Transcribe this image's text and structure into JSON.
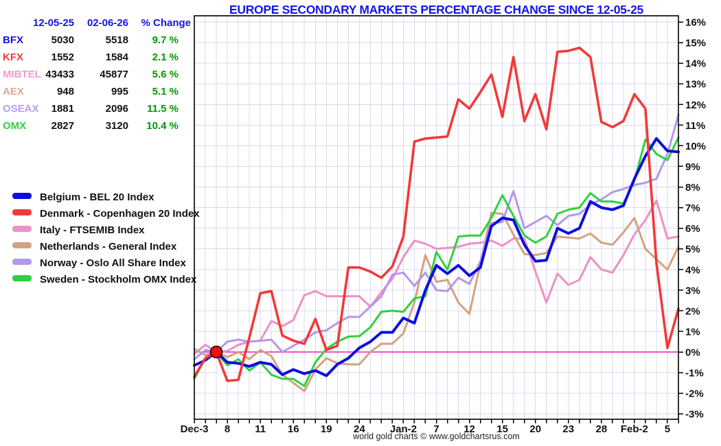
{
  "title": "EUROPE SECONDARY MARKETS PERCENTAGE CHANGE SINCE 12-05-25",
  "title_color": "#1414ee",
  "footer": "world gold charts © www.goldchartsrus.com",
  "table": {
    "header_color": "#1414e8",
    "change_color": "#009900",
    "headers": [
      "12-05-25",
      "02-06-26",
      "% Change"
    ],
    "rows": [
      {
        "label": "BFX",
        "color": "#1414e8",
        "v1": "5030",
        "v2": "5518",
        "change": "9.7 %"
      },
      {
        "label": "KFX",
        "color": "#f23b3b",
        "v1": "1552",
        "v2": "1584",
        "change": "2.1 %"
      },
      {
        "label": "MIBTEL",
        "color": "#f09bce",
        "v1": "43433",
        "v2": "45877",
        "change": "5.6 %"
      },
      {
        "label": "AEX",
        "color": "#d8ab91",
        "v1": "948",
        "v2": "995",
        "change": "5.1 %"
      },
      {
        "label": "OSEAX",
        "color": "#b99cef",
        "v1": "1881",
        "v2": "2096",
        "change": "11.5 %"
      },
      {
        "label": "OMX",
        "color": "#2fd13c",
        "v1": "2827",
        "v2": "3120",
        "change": "10.4 %"
      }
    ]
  },
  "legend": [
    {
      "label": "Belgium - BEL 20 Index",
      "color": "#0d0de0"
    },
    {
      "label": "Denmark - Copenhagen 20 Index",
      "color": "#f23939"
    },
    {
      "label": "Italy - FTSEMIB Index",
      "color": "#ee8fc6"
    },
    {
      "label": "Netherlands - General Index",
      "color": "#d2a284"
    },
    {
      "label": "Norway -  Oslo All Share Index",
      "color": "#b497e9"
    },
    {
      "label": "Sweden -  Stockholm OMX Index",
      "color": "#2fd13c"
    }
  ],
  "chart_data": {
    "type": "line",
    "grid": true,
    "grid_color": "#d8d8ef",
    "zero_line_color": "#ee19c3",
    "ylim": [
      -3,
      16
    ],
    "legend_position": "outside-left",
    "dates": [
      "Dec-3",
      "Dec-4",
      "Dec-5",
      "Dec-8",
      "Dec-9",
      "Dec-10",
      "Dec-11",
      "Dec-12",
      "Dec-15",
      "Dec-16",
      "Dec-17",
      "Dec-18",
      "Dec-19",
      "Dec-22",
      "Dec-23",
      "Dec-24",
      "Dec-29",
      "Dec-30",
      "Dec-31",
      "Jan-2",
      "Jan-5",
      "Jan-6",
      "Jan-7",
      "Jan-8",
      "Jan-9",
      "Jan-12",
      "Jan-13",
      "Jan-14",
      "Jan-15",
      "Jan-16",
      "Jan-19",
      "Jan-20",
      "Jan-21",
      "Jan-22",
      "Jan-23",
      "Jan-26",
      "Jan-27",
      "Jan-28",
      "Jan-29",
      "Jan-30",
      "Feb-2",
      "Feb-3",
      "Feb-4",
      "Feb-5",
      "Feb-6"
    ],
    "x_labels": [
      {
        "label": "Dec-3",
        "day": 0
      },
      {
        "label": "8",
        "day": 3
      },
      {
        "label": "11",
        "day": 6
      },
      {
        "label": "16",
        "day": 9
      },
      {
        "label": "19",
        "day": 12
      },
      {
        "label": "24",
        "day": 15
      },
      {
        "label": "Jan-2",
        "day": 19
      },
      {
        "label": "7",
        "day": 22
      },
      {
        "label": "12",
        "day": 25
      },
      {
        "label": "15",
        "day": 28
      },
      {
        "label": "20",
        "day": 31
      },
      {
        "label": "23",
        "day": 34
      },
      {
        "label": "28",
        "day": 37
      },
      {
        "label": "Feb-2",
        "day": 40
      },
      {
        "label": "5",
        "day": 43
      }
    ],
    "y_ticks": [
      {
        "v": 16,
        "label": "16%"
      },
      {
        "v": 15,
        "label": "15%"
      },
      {
        "v": 14,
        "label": "14%"
      },
      {
        "v": 13,
        "label": "13%"
      },
      {
        "v": 12,
        "label": "12%"
      },
      {
        "v": 11,
        "label": "11%"
      },
      {
        "v": 10,
        "label": "10%"
      },
      {
        "v": 9,
        "label": "9%"
      },
      {
        "v": 8,
        "label": "8%"
      },
      {
        "v": 7,
        "label": "7%"
      },
      {
        "v": 6,
        "label": "6%"
      },
      {
        "v": 5,
        "label": "5%"
      },
      {
        "v": 4,
        "label": "4%"
      },
      {
        "v": 3,
        "label": "3%"
      },
      {
        "v": 2,
        "label": "2%"
      },
      {
        "v": 1,
        "label": "1%"
      },
      {
        "v": 0,
        "label": "0%"
      },
      {
        "v": -1,
        "label": "-1%"
      },
      {
        "v": -2,
        "label": "-2%"
      },
      {
        "v": -3,
        "label": "-3%"
      }
    ],
    "start_marker": {
      "date_index": 2,
      "value": 0,
      "color": "#ee1111"
    },
    "series": [
      {
        "name": "Italy - FTSEMIB Index",
        "color": "#ee8fc6",
        "width": 3,
        "values": [
          -0.1,
          0.35,
          0,
          0.05,
          0.35,
          0.5,
          0.55,
          1.5,
          1.25,
          1.55,
          2.75,
          2.95,
          2.7,
          2.7,
          2.7,
          2.7,
          2.2,
          2.9,
          3.55,
          4.6,
          5.4,
          5.25,
          5.0,
          5.05,
          5.1,
          5.25,
          5.3,
          5.4,
          5.15,
          5.5,
          5.5,
          3.9,
          2.4,
          3.8,
          3.25,
          3.5,
          4.6,
          4.0,
          3.85,
          4.7,
          5.7,
          6.4,
          7.35,
          5.5,
          5.6
        ]
      },
      {
        "name": "Netherlands - General Index",
        "color": "#d2a284",
        "width": 3,
        "values": [
          0.15,
          -0.15,
          0,
          -0.25,
          0.0,
          -0.35,
          0.1,
          -0.2,
          -1.1,
          -1.5,
          -1.9,
          -0.85,
          -0.3,
          -0.55,
          -0.6,
          -0.6,
          0.0,
          0.4,
          0.4,
          0.9,
          2.4,
          4.7,
          3.4,
          3.5,
          2.4,
          1.85,
          4.3,
          6.75,
          6.7,
          5.7,
          4.75,
          4.7,
          4.8,
          5.6,
          5.55,
          5.5,
          5.75,
          5.3,
          5.2,
          5.8,
          6.5,
          5.0,
          4.5,
          4.0,
          5.1
        ]
      },
      {
        "name": "Norway -  Oslo All Share Index",
        "color": "#b497e9",
        "width": 3,
        "values": [
          -0.35,
          0.1,
          0,
          0.5,
          0.6,
          0.5,
          0.55,
          0.6,
          0.0,
          0.3,
          0.6,
          0.95,
          1.05,
          1.4,
          1.7,
          1.7,
          2.2,
          2.7,
          3.75,
          3.85,
          3.2,
          3.85,
          3.0,
          2.95,
          3.6,
          3.3,
          4.4,
          6.25,
          6.3,
          7.8,
          6.0,
          6.3,
          6.6,
          6.15,
          6.6,
          6.7,
          7.15,
          7.4,
          7.75,
          7.9,
          8.1,
          8.2,
          8.4,
          9.6,
          11.5
        ]
      },
      {
        "name": "Sweden -  Stockholm OMX Index",
        "color": "#2fd13c",
        "width": 3,
        "values": [
          -1.3,
          -0.3,
          0,
          -0.65,
          -0.35,
          -0.9,
          -0.5,
          -1.1,
          -1.3,
          -1.3,
          -1.65,
          -0.5,
          0.15,
          0.5,
          0.75,
          0.77,
          1.2,
          1.95,
          2.0,
          1.95,
          2.6,
          2.7,
          4.85,
          4.0,
          5.6,
          5.65,
          5.65,
          6.5,
          7.6,
          6.6,
          5.65,
          5.3,
          5.6,
          6.7,
          6.9,
          7.0,
          7.7,
          7.3,
          7.3,
          7.2,
          8.3,
          10.3,
          9.6,
          9.3,
          10.4
        ]
      },
      {
        "name": "Belgium - BEL 20 Index",
        "color": "#0d0de0",
        "width": 4,
        "values": [
          -0.65,
          -0.4,
          0,
          -0.5,
          -0.55,
          -0.7,
          -0.5,
          -0.6,
          -1.1,
          -0.85,
          -1.05,
          -0.9,
          -1.15,
          -0.6,
          -0.3,
          0.2,
          0.5,
          0.95,
          0.95,
          1.65,
          1.4,
          3.0,
          4.2,
          3.8,
          4.2,
          3.7,
          4.1,
          6.1,
          6.5,
          6.4,
          5.2,
          4.4,
          4.45,
          6.0,
          5.75,
          6.0,
          7.3,
          7.0,
          6.9,
          7.1,
          8.4,
          9.5,
          10.35,
          9.75,
          9.7
        ]
      },
      {
        "name": "Denmark - Copenhagen 20 Index",
        "color": "#f23939",
        "width": 3.6,
        "values": [
          -1.2,
          -0.3,
          0,
          -1.4,
          -1.35,
          0.7,
          2.85,
          2.95,
          0.8,
          0.55,
          0.4,
          1.6,
          0.1,
          0.3,
          4.1,
          4.1,
          3.9,
          3.6,
          4.15,
          5.6,
          10.2,
          10.35,
          10.4,
          10.45,
          12.25,
          11.8,
          12.6,
          13.45,
          11.4,
          14.3,
          11.2,
          12.5,
          10.8,
          14.55,
          14.6,
          14.75,
          14.3,
          11.15,
          10.9,
          11.2,
          12.5,
          11.8,
          4.3,
          0.2,
          2.1
        ]
      }
    ]
  }
}
